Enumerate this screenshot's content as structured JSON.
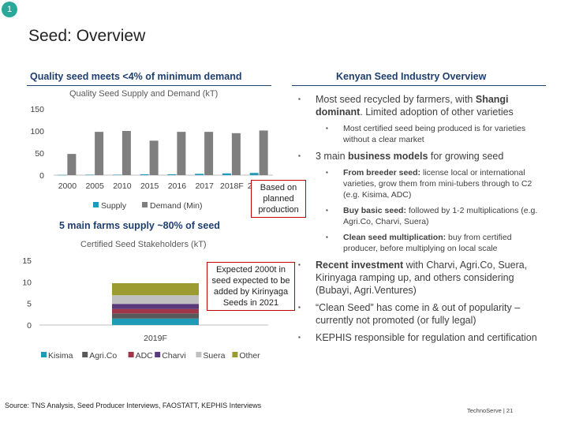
{
  "slide": {
    "number": "1",
    "title": "Seed: Overview",
    "left_header": "Quality seed meets <4% of minimum demand",
    "right_header": "Kenyan Seed Industry Overview",
    "farms_note": "5 main farms supply ~80% of seed",
    "source": "Source: TNS Analysis, Seed Producer Interviews, FAOSTATT, KEPHIS Interviews",
    "brand": "TechnoServe | 21"
  },
  "colors": {
    "accent": "#1f3f6e",
    "supply": "#1f9bb8",
    "demand": "#7f7f7f",
    "callout_border": "#c00000",
    "badge": "#2aa89a"
  },
  "callouts": {
    "based_on_planned": "Based on planned production",
    "expected_2000t": "Expected 2000t in seed expected to be added by Kirinyaga Seeds in 2021"
  },
  "bullets": [
    {
      "text_parts": [
        {
          "t": "Most seed recycled by farmers, with "
        },
        {
          "t": "Shangi dominant",
          "bold": true
        },
        {
          "t": ". Limited adoption of other varieties"
        }
      ],
      "sub": [
        {
          "text_parts": [
            {
              "t": "Most certified seed being produced is for varieties without a clear market"
            }
          ]
        }
      ]
    },
    {
      "text_parts": [
        {
          "t": "3 main "
        },
        {
          "t": "business models",
          "bold": true
        },
        {
          "t": " for growing seed"
        }
      ],
      "sub": [
        {
          "text_parts": [
            {
              "t": "From breeder seed:",
              "bold": true
            },
            {
              "t": " license local or international varieties, grow them from mini-tubers through to C2  (e.g. Kisima, ADC)"
            }
          ]
        },
        {
          "text_parts": [
            {
              "t": "Buy basic seed:",
              "bold": true
            },
            {
              "t": " followed by 1-2 multiplications (e.g. Agri.Co, Charvi, Suera)"
            }
          ]
        },
        {
          "text_parts": [
            {
              "t": "Clean seed multiplication:",
              "bold": true
            },
            {
              "t": " buy from certified producer, before multiplying on local scale"
            }
          ]
        }
      ]
    },
    {
      "text_parts": [
        {
          "t": "Recent investment",
          "bold": true
        },
        {
          "t": " with Charvi, Agri.Co, Suera, Kirinyaga ramping up, and others considering (Bubayi, Agri.Ventures)"
        }
      ],
      "sub": []
    },
    {
      "text_parts": [
        {
          "t": "“Clean Seed” has come in & out of popularity – currently not promoted (or fully legal)"
        }
      ],
      "sub": []
    },
    {
      "text_parts": [
        {
          "t": "KEPHIS responsible for regulation and certification"
        }
      ],
      "sub": []
    }
  ],
  "chart_data": [
    {
      "type": "bar",
      "title": "Quality Seed Supply and Demand (kT)",
      "categories": [
        "2000",
        "2005",
        "2010",
        "2015",
        "2016",
        "2017",
        "2018F",
        "2023F"
      ],
      "series": [
        {
          "name": "Supply",
          "color": "#1f9bb8",
          "values": [
            0.5,
            1,
            1,
            2,
            2,
            3,
            4,
            5
          ]
        },
        {
          "name": "Demand (Min)",
          "color": "#7f7f7f",
          "values": [
            48,
            98,
            100,
            78,
            98,
            98,
            95,
            101
          ]
        }
      ],
      "yticks": [
        0,
        50,
        100,
        150
      ],
      "ylim": [
        0,
        150
      ],
      "grid": false,
      "legend": "bottom"
    },
    {
      "type": "bar",
      "stacked": true,
      "title": "Certified Seed Stakeholders (kT)",
      "categories": [
        "2019F"
      ],
      "series": [
        {
          "name": "Kisima",
          "color": "#1f9bb8",
          "values": [
            1.5
          ]
        },
        {
          "name": "Agri.Co",
          "color": "#595959",
          "values": [
            1.2
          ]
        },
        {
          "name": "ADC",
          "color": "#a0364a",
          "values": [
            1.0
          ]
        },
        {
          "name": "Charvi",
          "color": "#5a3a7a",
          "values": [
            1.2
          ]
        },
        {
          "name": "Suera",
          "color": "#c0c0c0",
          "values": [
            2.0
          ]
        },
        {
          "name": "Other",
          "color": "#9b9b32",
          "values": [
            2.8
          ]
        }
      ],
      "yticks": [
        0,
        5,
        10,
        15
      ],
      "ylim": [
        0,
        15
      ],
      "grid": false,
      "legend": "bottom"
    }
  ]
}
